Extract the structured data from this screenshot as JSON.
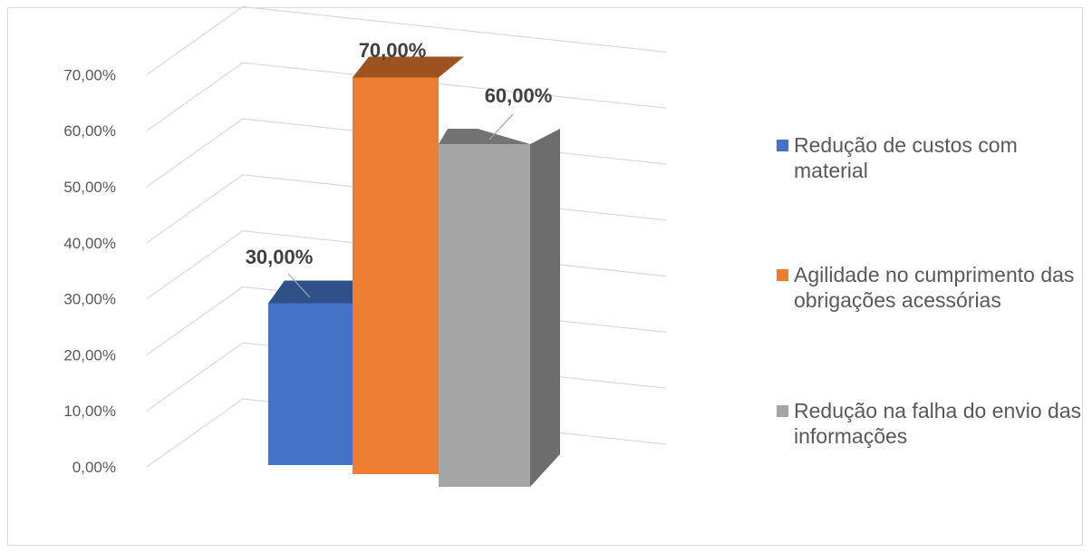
{
  "chart_data": {
    "type": "bar",
    "title": "",
    "xlabel": "",
    "ylabel": "",
    "ylim": [
      0,
      70
    ],
    "yticks": [
      "0,00%",
      "10,00%",
      "20,00%",
      "30,00%",
      "40,00%",
      "50,00%",
      "60,00%",
      "70,00%"
    ],
    "grid": true,
    "legend_position": "right",
    "three_d": true,
    "series": [
      {
        "name": "Redução de custos com material",
        "value": 30,
        "label": "30,00%",
        "color": "#4472c4"
      },
      {
        "name": "Agilidade no cumprimento das obrigações acessórias",
        "value": 70,
        "label": "70,00%",
        "color": "#ed7d31"
      },
      {
        "name": "Redução na falha do envio das informações",
        "value": 60,
        "label": "60,00%",
        "color": "#a5a5a5"
      }
    ]
  }
}
